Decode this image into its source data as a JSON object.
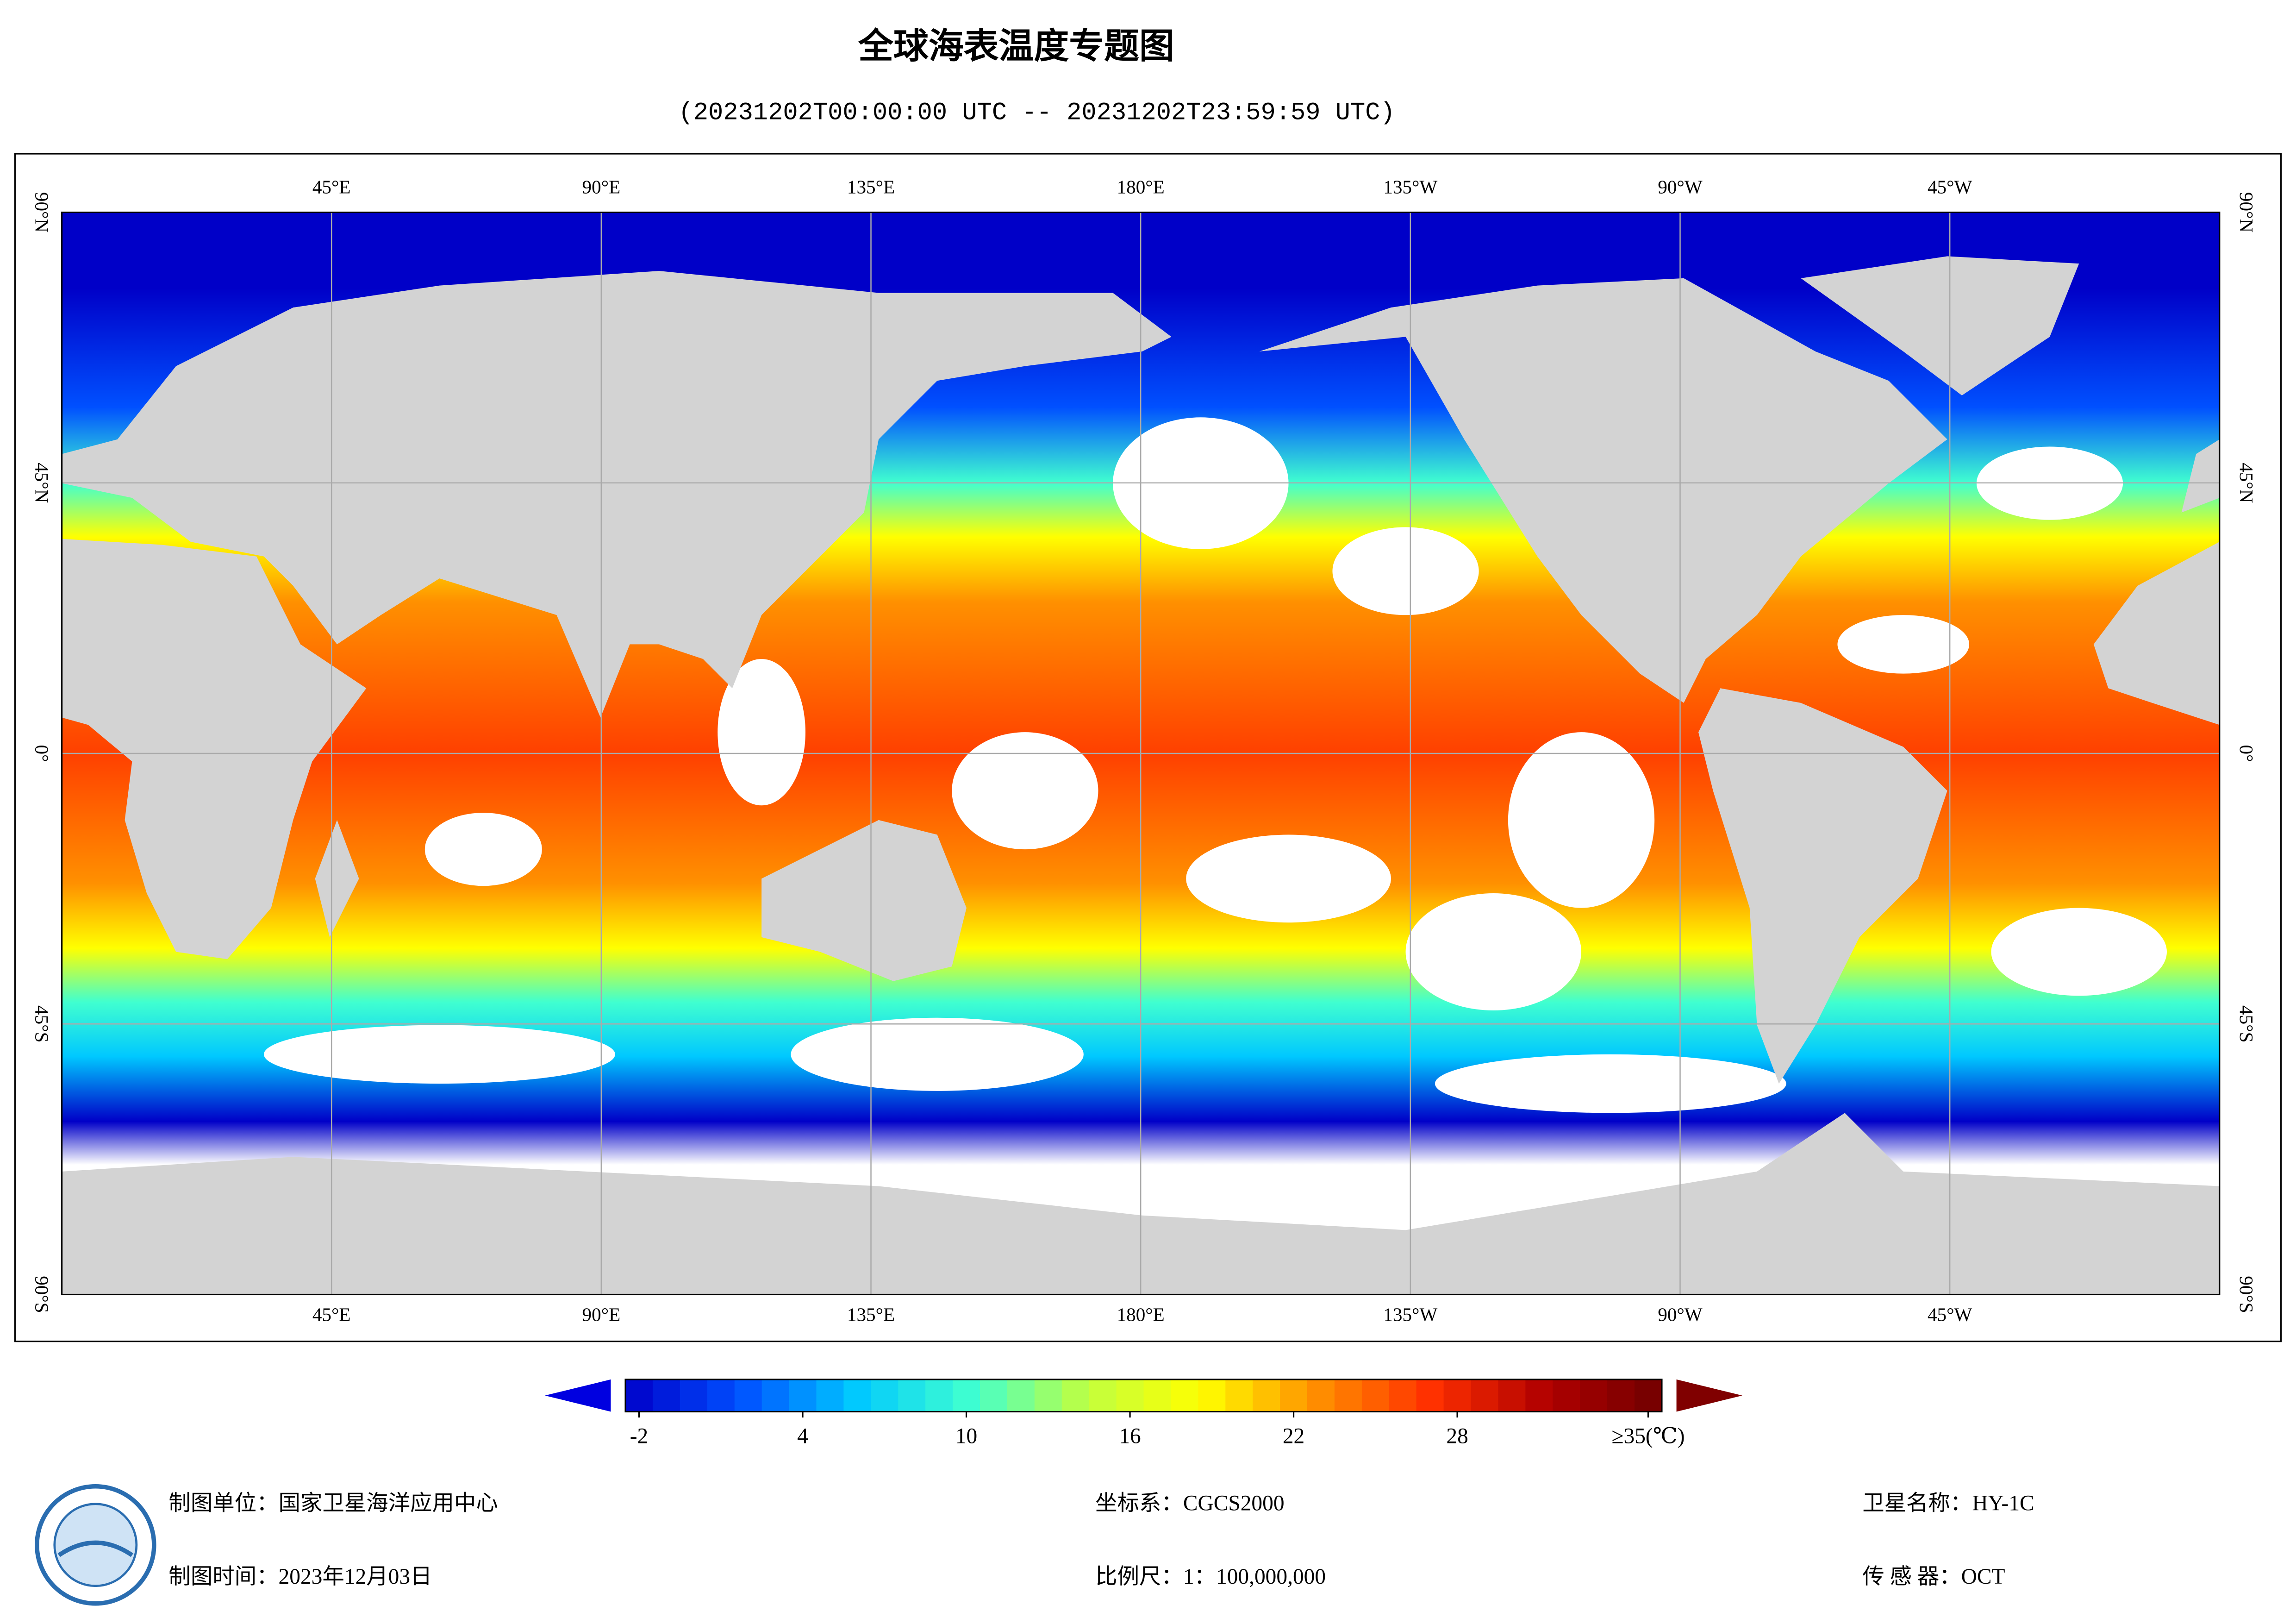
{
  "header": {
    "title": "全球海表温度专题图",
    "subtitle": "(20231202T00:00:00 UTC -- 20231202T23:59:59 UTC)"
  },
  "map": {
    "lonlim": [
      0,
      360
    ],
    "latlim": [
      -90,
      90
    ],
    "lon_ticks": [
      {
        "value": 45,
        "label": "45°E"
      },
      {
        "value": 90,
        "label": "90°E"
      },
      {
        "value": 135,
        "label": "135°E"
      },
      {
        "value": 180,
        "label": "180°E"
      },
      {
        "value": 225,
        "label": "135°W"
      },
      {
        "value": 270,
        "label": "90°W"
      },
      {
        "value": 315,
        "label": "45°W"
      }
    ],
    "lat_ticks": [
      {
        "value": 90,
        "label": "90°N"
      },
      {
        "value": 45,
        "label": "45°N"
      },
      {
        "value": 0,
        "label": "0°"
      },
      {
        "value": -45,
        "label": "45°S"
      },
      {
        "value": -90,
        "label": "90°S"
      }
    ]
  },
  "colorbar": {
    "clim": [
      -2.5,
      35.5
    ],
    "ticks": [
      -2,
      4,
      10,
      16,
      22,
      28,
      {
        "value": 35,
        "label": "≥35(℃)"
      }
    ],
    "colors": [
      "#0000c8",
      "#0050ff",
      "#00c8ff",
      "#40ffd0",
      "#c0ff40",
      "#ffff00",
      "#ff9000",
      "#ff3000",
      "#b00000",
      "#700000"
    ]
  },
  "footer": {
    "unit": "制图单位：国家卫星海洋应用中心",
    "date": "制图时间：2023年12月03日",
    "crs": "坐标系：CGCS2000",
    "scale": "比例尺：1：100,000,000",
    "satellite": "卫星名称：HY-1C",
    "sensor": "传 感 器：OCT"
  }
}
